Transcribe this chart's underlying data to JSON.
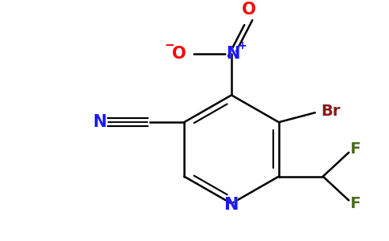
{
  "background_color": "#ffffff",
  "figure_width": 4.84,
  "figure_height": 3.0,
  "dpi": 100,
  "bond_color": "#000000",
  "bond_lw": 1.8,
  "colors": {
    "N": "#1a1aff",
    "Br": "#8b1a1a",
    "F": "#4a6b1a",
    "O": "#ff0000",
    "C": "#000000"
  },
  "label_fontsize": 14,
  "label_fontweight": "bold"
}
